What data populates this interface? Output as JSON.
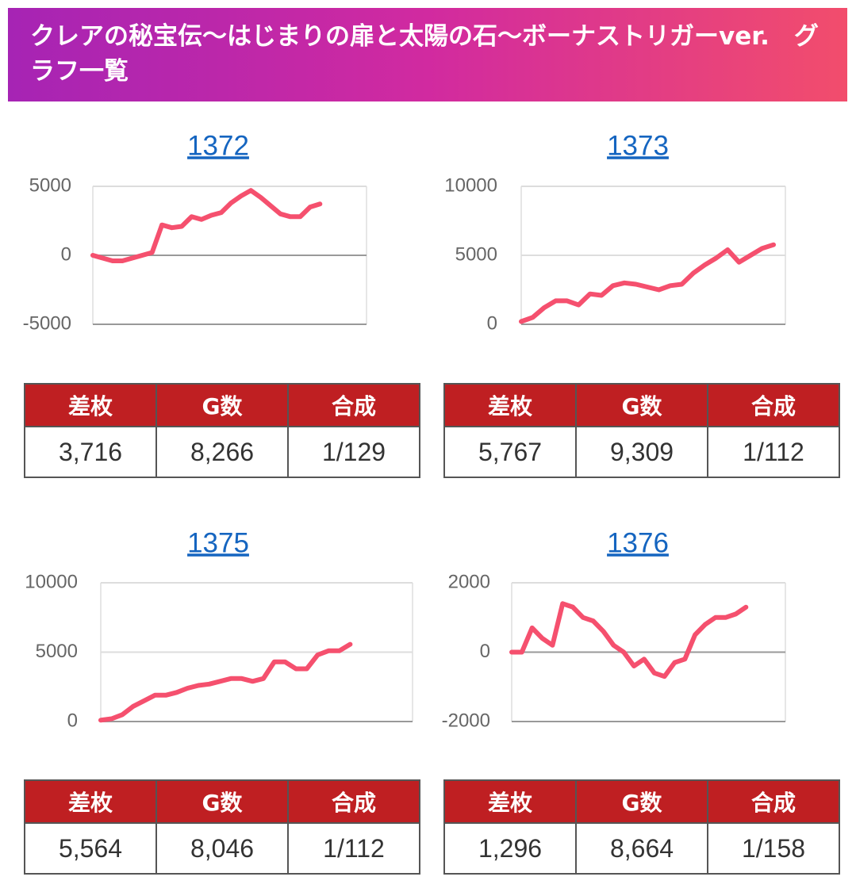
{
  "header": {
    "title": "クレアの秘宝伝〜はじまりの扉と太陽の石〜ボーナストリガーver.　グラフ一覧"
  },
  "chart_data": [
    {
      "type": "line",
      "title": "1372",
      "ylim": [
        -5000,
        5000
      ],
      "yticks": [
        -5000,
        0,
        5000
      ],
      "grid": true,
      "series": [
        {
          "color": "#f5506e",
          "values": [
            0,
            -200,
            -400,
            -400,
            -200,
            0,
            200,
            2200,
            2000,
            2100,
            2800,
            2600,
            2900,
            3100,
            3800,
            4300,
            4700,
            4200,
            3600,
            3000,
            2800,
            2800,
            3500,
            3716
          ]
        }
      ]
    },
    {
      "type": "line",
      "title": "1373",
      "ylim": [
        0,
        10000
      ],
      "yticks": [
        0,
        5000,
        10000
      ],
      "grid": true,
      "series": [
        {
          "color": "#f5506e",
          "values": [
            200,
            500,
            1200,
            1700,
            1700,
            1400,
            2200,
            2100,
            2800,
            3000,
            2900,
            2700,
            2500,
            2800,
            2900,
            3700,
            4300,
            4800,
            5400,
            4500,
            5000,
            5500,
            5767
          ]
        }
      ]
    },
    {
      "type": "line",
      "title": "1375",
      "ylim": [
        0,
        10000
      ],
      "yticks": [
        0,
        5000,
        10000
      ],
      "grid": true,
      "series": [
        {
          "color": "#f5506e",
          "values": [
            100,
            200,
            500,
            1100,
            1500,
            1900,
            1900,
            2100,
            2400,
            2600,
            2700,
            2900,
            3100,
            3100,
            2900,
            3100,
            4300,
            4300,
            3800,
            3800,
            4800,
            5100,
            5100,
            5564
          ]
        }
      ]
    },
    {
      "type": "line",
      "title": "1376",
      "ylim": [
        -2000,
        2000
      ],
      "yticks": [
        -2000,
        0,
        2000
      ],
      "grid": true,
      "series": [
        {
          "color": "#f5506e",
          "values": [
            0,
            0,
            700,
            400,
            200,
            1400,
            1300,
            1000,
            900,
            600,
            200,
            0,
            -400,
            -200,
            -600,
            -700,
            -300,
            -200,
            500,
            800,
            1000,
            1000,
            1100,
            1296
          ]
        }
      ]
    }
  ],
  "tables": [
    {
      "headers": [
        "差枚",
        "G数",
        "合成"
      ],
      "row": [
        "3,716",
        "8,266",
        "1/129"
      ]
    },
    {
      "headers": [
        "差枚",
        "G数",
        "合成"
      ],
      "row": [
        "5,767",
        "9,309",
        "1/112"
      ]
    },
    {
      "headers": [
        "差枚",
        "G数",
        "合成"
      ],
      "row": [
        "5,564",
        "8,046",
        "1/112"
      ]
    },
    {
      "headers": [
        "差枚",
        "G数",
        "合成"
      ],
      "row": [
        "1,296",
        "8,664",
        "1/158"
      ]
    }
  ]
}
